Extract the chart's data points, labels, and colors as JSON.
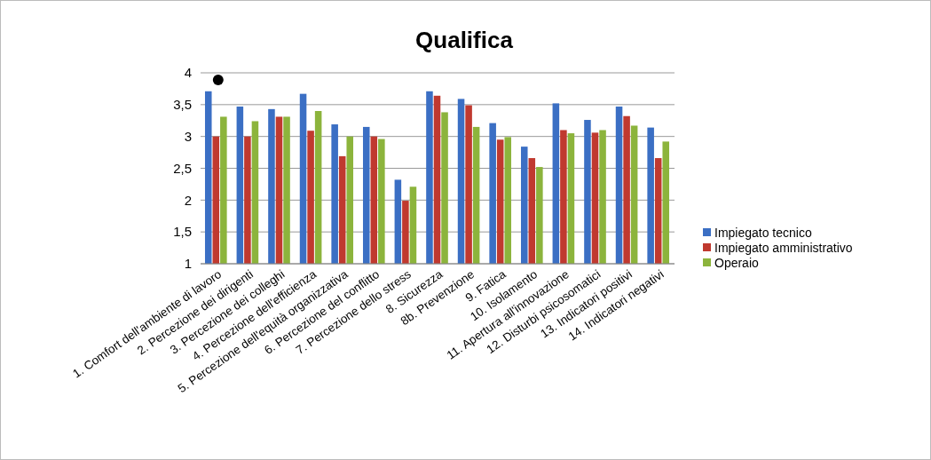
{
  "chart_data": {
    "type": "bar",
    "title": "Qualifica",
    "categories": [
      "1. Comfort dell'ambiente di lavoro",
      "2. Percezione dei dirigenti",
      "3. Percezione dei colleghi",
      "4. Percezione dell'efficienza",
      "5. Percezione dell'equità  organizzativa",
      "6. Percezione del conflitto",
      "7. Percezione dello stress",
      "8. Sicurezza",
      "8b. Prevenzione",
      "9. Fatica",
      "10. Isolamento",
      "11. Apertura all'innovazione",
      "12. Disturbi psicosomatici",
      "13. Indicatori positivi",
      "14. Indicatori negativi"
    ],
    "series": [
      {
        "name": "Impiegato tecnico",
        "color": "#3b6fc4",
        "values": [
          3.71,
          3.47,
          3.43,
          3.67,
          3.19,
          3.15,
          2.32,
          3.71,
          3.59,
          3.21,
          2.84,
          3.52,
          3.26,
          3.47,
          3.14
        ]
      },
      {
        "name": "Impiegato amministrativo",
        "color": "#c0392f",
        "values": [
          3.0,
          3.0,
          3.31,
          3.09,
          2.69,
          3.0,
          1.99,
          3.64,
          3.49,
          2.95,
          2.66,
          3.1,
          3.06,
          3.32,
          2.66
        ]
      },
      {
        "name": "Operaio",
        "color": "#8cb43c",
        "values": [
          3.31,
          3.24,
          3.31,
          3.4,
          3.0,
          2.96,
          2.21,
          3.38,
          3.15,
          2.99,
          2.52,
          3.05,
          3.1,
          3.17,
          2.92
        ]
      }
    ],
    "ylim": [
      1,
      4
    ],
    "yticks": [
      1,
      {
        "value": 1.5,
        "label": "1,5"
      },
      2,
      {
        "value": 2.5,
        "label": "2,5"
      },
      3,
      {
        "value": 3.5,
        "label": "3,5"
      },
      4
    ],
    "grid": "y",
    "legend": "right"
  }
}
